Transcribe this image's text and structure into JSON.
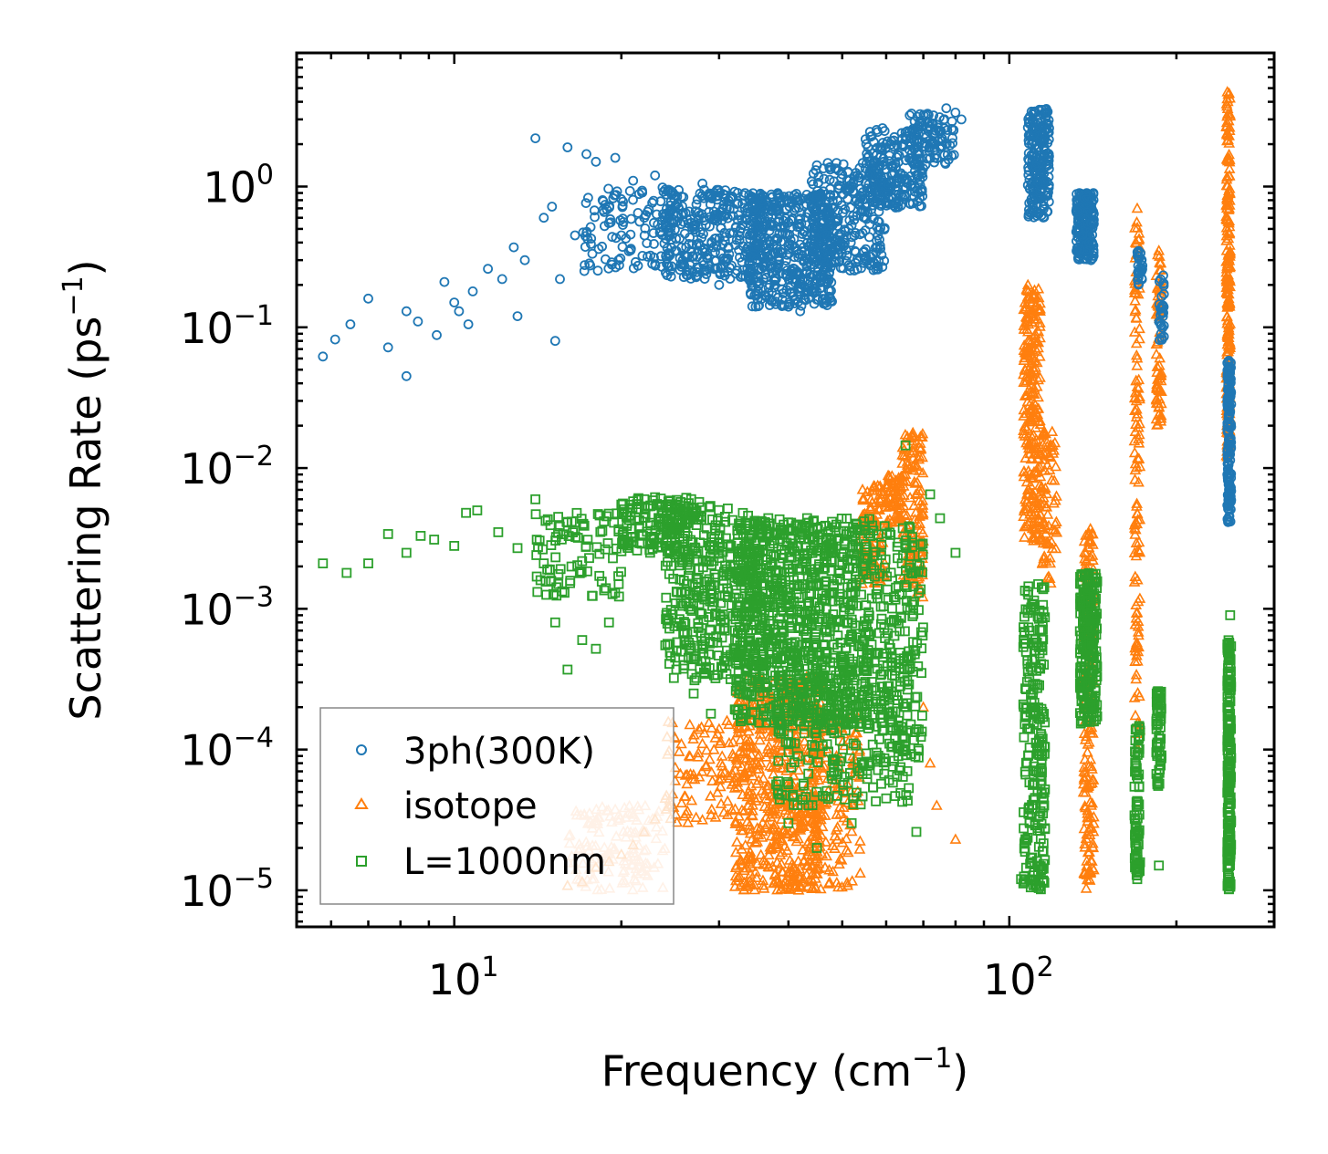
{
  "chart_data": {
    "type": "scatter",
    "xscale": "log",
    "yscale": "log",
    "xlim": [
      5.2,
      300
    ],
    "ylim": [
      5.5e-06,
      8.9
    ],
    "xlabel": "Frequency (cm",
    "xlabel_sup": "−1",
    "xlabel_close": ")",
    "ylabel": "Scattering Rate (ps",
    "ylabel_sup": "−1",
    "ylabel_close": ")",
    "x_ticks": [
      {
        "value": 10,
        "base": "10",
        "exp": "1"
      },
      {
        "value": 100,
        "base": "10",
        "exp": "2"
      }
    ],
    "y_ticks": [
      {
        "value": 1,
        "base": "10",
        "exp": "0"
      },
      {
        "value": 0.1,
        "base": "10",
        "exp": "−1"
      },
      {
        "value": 0.01,
        "base": "10",
        "exp": "−2"
      },
      {
        "value": 0.001,
        "base": "10",
        "exp": "−3"
      },
      {
        "value": 0.0001,
        "base": "10",
        "exp": "−4"
      },
      {
        "value": 1e-05,
        "base": "10",
        "exp": "−5"
      }
    ],
    "legend_position": "lower-left",
    "series": [
      {
        "name": "3ph(300K)",
        "marker": "circle",
        "color": "#1f77b4",
        "points": [
          [
            5.8,
            0.062
          ],
          [
            6.1,
            0.082
          ],
          [
            6.5,
            0.105
          ],
          [
            7.0,
            0.16
          ],
          [
            7.6,
            0.072
          ],
          [
            8.2,
            0.045
          ],
          [
            8.2,
            0.13
          ],
          [
            8.6,
            0.11
          ],
          [
            9.3,
            0.088
          ],
          [
            9.6,
            0.21
          ],
          [
            10.0,
            0.15
          ],
          [
            10.2,
            0.13
          ],
          [
            10.6,
            0.105
          ],
          [
            10.8,
            0.18
          ],
          [
            11.5,
            0.26
          ],
          [
            12.2,
            0.22
          ],
          [
            12.8,
            0.37
          ],
          [
            13.0,
            0.12
          ],
          [
            13.4,
            0.3
          ],
          [
            14.0,
            2.2
          ],
          [
            14.5,
            0.6
          ],
          [
            15.0,
            0.72
          ],
          [
            15.2,
            0.08
          ],
          [
            15.5,
            0.22
          ],
          [
            16.0,
            1.9
          ],
          [
            16.5,
            0.45
          ],
          [
            17.3,
            1.7
          ],
          [
            18.0,
            1.5
          ],
          [
            18.5,
            0.8
          ],
          [
            19.5,
            1.6
          ],
          [
            20.0,
            0.45
          ],
          [
            21.0,
            1.1
          ],
          [
            22.0,
            0.6
          ],
          [
            23.0,
            1.2
          ],
          [
            24.0,
            0.95
          ],
          [
            25.0,
            0.35
          ],
          [
            28.0,
            1.05
          ],
          [
            30.0,
            0.2
          ],
          [
            32.0,
            0.92
          ],
          [
            35.0,
            0.3
          ],
          [
            38.0,
            0.22
          ],
          [
            40.0,
            0.14
          ],
          [
            42.0,
            0.13
          ],
          [
            45.0,
            0.18
          ],
          [
            48.0,
            0.7
          ],
          [
            52.0,
            1.0
          ],
          [
            56.0,
            1.5
          ],
          [
            60.0,
            2.0
          ],
          [
            64.0,
            2.4
          ],
          [
            70.0,
            2.7
          ],
          [
            73.0,
            3.2
          ],
          [
            77.0,
            3.6
          ],
          [
            82.0,
            3.0
          ]
        ],
        "clusters": [
          {
            "x": [
              17,
              25
            ],
            "y": [
              0.25,
              1.0
            ],
            "n": 120
          },
          {
            "x": [
              24,
              36
            ],
            "y": [
              0.22,
              0.95
            ],
            "n": 320
          },
          {
            "x": [
              34,
              48
            ],
            "y": [
              0.14,
              0.9
            ],
            "n": 480
          },
          {
            "x": [
              44,
              60
            ],
            "y": [
              0.25,
              1.5
            ],
            "n": 280
          },
          {
            "x": [
              55,
              70
            ],
            "y": [
              0.7,
              2.6
            ],
            "n": 220
          },
          {
            "x": [
              66,
              80
            ],
            "y": [
              1.4,
              3.4
            ],
            "n": 90
          },
          {
            "x": [
              108,
              118
            ],
            "y": [
              0.6,
              3.6
            ],
            "n": 220
          },
          {
            "x": [
              132,
              142
            ],
            "y": [
              0.3,
              0.9
            ],
            "n": 200
          },
          {
            "x": [
              170,
              174
            ],
            "y": [
              0.2,
              0.35
            ],
            "n": 30
          },
          {
            "x": [
              186,
              190
            ],
            "y": [
              0.08,
              0.25
            ],
            "n": 30
          },
          {
            "x": [
              247,
              251
            ],
            "y": [
              0.004,
              0.06
            ],
            "n": 160
          }
        ]
      },
      {
        "name": "isotope",
        "marker": "triangle",
        "color": "#ff7f0e",
        "points": [
          [
            16.0,
            1.08e-05
          ],
          [
            17.0,
            1.15e-05
          ],
          [
            18.0,
            1.45e-05
          ],
          [
            19.0,
            1.6e-05
          ],
          [
            20.0,
            1.8e-05
          ],
          [
            21.0,
            2.1e-05
          ],
          [
            22.0,
            2.6e-05
          ],
          [
            23.0,
            3.2e-05
          ],
          [
            24.0,
            4.5e-05
          ],
          [
            25.0,
            6e-05
          ],
          [
            26.5,
            9e-05
          ],
          [
            28.0,
            0.00011
          ],
          [
            30.0,
            0.00014
          ],
          [
            31.0,
            0.00016
          ],
          [
            65.0,
            0.009
          ],
          [
            67.0,
            0.017
          ],
          [
            70.0,
            0.0002
          ],
          [
            72.0,
            8e-05
          ],
          [
            74.0,
            4e-05
          ],
          [
            80.0,
            2.3e-05
          ],
          [
            108.0,
            0.2
          ],
          [
            121.0,
            0.004
          ],
          [
            140.0,
            0.0037
          ],
          [
            170.0,
            0.7
          ],
          [
            186.0,
            0.35
          ],
          [
            247.0,
            4.7
          ],
          [
            247.0,
            0.012
          ]
        ],
        "clusters": [
          {
            "x": [
              16,
              24
            ],
            "y": [
              1e-05,
              4e-05
            ],
            "n": 140,
            "faded": true
          },
          {
            "x": [
              24,
              32
            ],
            "y": [
              3e-05,
              0.00016
            ],
            "n": 90
          },
          {
            "x": [
              32,
              46
            ],
            "y": [
              1e-05,
              0.00034
            ],
            "n": 620
          },
          {
            "x": [
              44,
              54
            ],
            "y": [
              1e-05,
              0.0002
            ],
            "n": 140
          },
          {
            "x": [
              54,
              60
            ],
            "y": [
              0.0015,
              0.0075
            ],
            "n": 110
          },
          {
            "x": [
              60,
              64
            ],
            "y": [
              0.004,
              0.009
            ],
            "n": 60
          },
          {
            "x": [
              64,
              70
            ],
            "y": [
              0.0012,
              0.018
            ],
            "n": 130
          },
          {
            "x": [
              106,
              114
            ],
            "y": [
              0.003,
              0.19
            ],
            "n": 260
          },
          {
            "x": [
              114,
              122
            ],
            "y": [
              0.0015,
              0.02
            ],
            "n": 70
          },
          {
            "x": [
              136,
              142
            ],
            "y": [
              1e-05,
              0.0035
            ],
            "n": 180
          },
          {
            "x": [
              168,
              172
            ],
            "y": [
              0.0001,
              0.65
            ],
            "n": 120
          },
          {
            "x": [
              184,
              188
            ],
            "y": [
              0.02,
              0.33
            ],
            "n": 80
          },
          {
            "x": [
              246,
              250
            ],
            "y": [
              0.012,
              4.6
            ],
            "n": 220
          }
        ]
      },
      {
        "name": "L=1000nm",
        "marker": "square",
        "color": "#2ca02c",
        "points": [
          [
            5.8,
            0.0021
          ],
          [
            6.4,
            0.0018
          ],
          [
            7.0,
            0.0021
          ],
          [
            7.6,
            0.0034
          ],
          [
            8.2,
            0.0025
          ],
          [
            8.7,
            0.0033
          ],
          [
            9.2,
            0.0031
          ],
          [
            10.0,
            0.0028
          ],
          [
            10.5,
            0.0048
          ],
          [
            11.0,
            0.005
          ],
          [
            12.0,
            0.0035
          ],
          [
            13.0,
            0.0027
          ],
          [
            14.0,
            0.006
          ],
          [
            14.5,
            0.0021
          ],
          [
            15.2,
            0.0008
          ],
          [
            15.8,
            0.0013
          ],
          [
            16.0,
            0.00037
          ],
          [
            17.0,
            0.0006
          ],
          [
            18.0,
            0.00052
          ],
          [
            19.0,
            0.0008
          ],
          [
            20.0,
            0.0055
          ],
          [
            21.0,
            0.0058
          ],
          [
            22.0,
            0.006
          ],
          [
            23.0,
            0.0062
          ],
          [
            24.0,
            0.00055
          ],
          [
            25.0,
            0.00045
          ],
          [
            27.0,
            0.00025
          ],
          [
            29.0,
            0.00018
          ],
          [
            40.0,
            3e-05
          ],
          [
            45.0,
            2e-05
          ],
          [
            52.0,
            3e-05
          ],
          [
            60.0,
            4.5e-05
          ],
          [
            65.0,
            0.0145
          ],
          [
            68.0,
            2.6e-05
          ],
          [
            72.0,
            0.0065
          ],
          [
            75.0,
            0.0044
          ],
          [
            80.0,
            0.0025
          ],
          [
            105.0,
            1.2e-05
          ],
          [
            170.0,
            1.2e-05
          ],
          [
            186.0,
            1.5e-05
          ],
          [
            250.0,
            0.0009
          ]
        ],
        "clusters": [
          {
            "x": [
              14,
              20
            ],
            "y": [
              0.0012,
              0.0048
            ],
            "n": 90
          },
          {
            "x": [
              20,
              28
            ],
            "y": [
              0.0025,
              0.0062
            ],
            "n": 150
          },
          {
            "x": [
              24,
              36
            ],
            "y": [
              0.0003,
              0.0055
            ],
            "n": 400
          },
          {
            "x": [
              32,
              56
            ],
            "y": [
              0.00015,
              0.0045
            ],
            "n": 900
          },
          {
            "x": [
              38,
              66
            ],
            "y": [
              4e-05,
              0.0005
            ],
            "n": 250
          },
          {
            "x": [
              55,
              70
            ],
            "y": [
              8e-05,
              0.004
            ],
            "n": 220
          },
          {
            "x": [
              106,
              116
            ],
            "y": [
              1e-05,
              0.0015
            ],
            "n": 240
          },
          {
            "x": [
              134,
              144
            ],
            "y": [
              0.00015,
              0.0018
            ],
            "n": 240
          },
          {
            "x": [
              168,
              172
            ],
            "y": [
              1.2e-05,
              0.00016
            ],
            "n": 80
          },
          {
            "x": [
              184,
              188
            ],
            "y": [
              5.5e-05,
              0.00026
            ],
            "n": 70
          },
          {
            "x": [
              247,
              251
            ],
            "y": [
              1e-05,
              0.0006
            ],
            "n": 200
          }
        ]
      }
    ]
  }
}
